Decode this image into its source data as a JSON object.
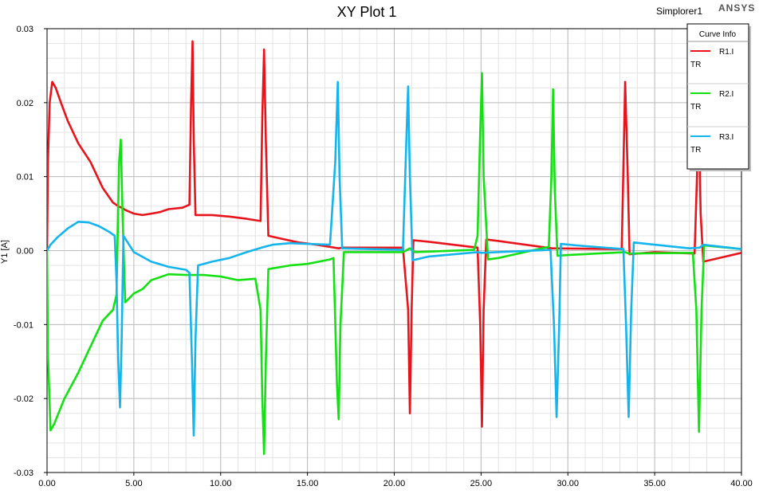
{
  "header": {
    "title": "XY Plot 1",
    "design_name": "Simplorer1",
    "logo": "ANSYS"
  },
  "legend": {
    "title": "Curve Info",
    "entries": [
      {
        "name": "R1.I",
        "sub": "TR",
        "color": "#e8141c"
      },
      {
        "name": "R2.I",
        "sub": "TR",
        "color": "#14e014"
      },
      {
        "name": "R3.I",
        "sub": "TR",
        "color": "#14b4ec"
      }
    ]
  },
  "chart_data": {
    "type": "line",
    "title": "XY Plot 1",
    "xlabel": "",
    "ylabel": "Y1 [A]",
    "xlim": [
      0,
      40
    ],
    "ylim": [
      -0.03,
      0.03
    ],
    "xticks": [
      "0.00",
      "5.00",
      "10.00",
      "15.00",
      "20.00",
      "25.00",
      "30.00",
      "35.00",
      "40.00"
    ],
    "yticks": [
      "0.03",
      "0.02",
      "0.01",
      "0.00",
      "-0.01",
      "-0.02",
      "-0.03"
    ],
    "grid": true,
    "legend_position": "top-right",
    "series": [
      {
        "name": "R1.I",
        "color": "#e8141c",
        "points": [
          [
            0,
            0
          ],
          [
            0.05,
            0.012
          ],
          [
            0.15,
            0.02
          ],
          [
            0.3,
            0.0228
          ],
          [
            0.5,
            0.022
          ],
          [
            0.8,
            0.02
          ],
          [
            1.2,
            0.0175
          ],
          [
            1.8,
            0.0145
          ],
          [
            2.5,
            0.012
          ],
          [
            3.2,
            0.0085
          ],
          [
            3.8,
            0.0065
          ],
          [
            4.1,
            0.006
          ],
          [
            4.3,
            0.0058
          ],
          [
            4.5,
            0.0055
          ],
          [
            5,
            0.005
          ],
          [
            5.5,
            0.0048
          ],
          [
            6,
            0.005
          ],
          [
            6.5,
            0.0052
          ],
          [
            7,
            0.0056
          ],
          [
            7.8,
            0.0058
          ],
          [
            8.2,
            0.0062
          ],
          [
            8.3,
            0.02
          ],
          [
            8.38,
            0.0283
          ],
          [
            8.45,
            0.015
          ],
          [
            8.55,
            0.0048
          ],
          [
            9.5,
            0.0048
          ],
          [
            10.5,
            0.0046
          ],
          [
            11.5,
            0.0043
          ],
          [
            12.3,
            0.004
          ],
          [
            12.4,
            0.018
          ],
          [
            12.5,
            0.0272
          ],
          [
            12.6,
            0.015
          ],
          [
            12.75,
            0.002
          ],
          [
            13.5,
            0.0016
          ],
          [
            14.5,
            0.0011
          ],
          [
            15.5,
            0.0008
          ],
          [
            16.3,
            0.0005
          ],
          [
            16.8,
            0.0003
          ],
          [
            17,
            0.0004
          ],
          [
            20.5,
            0.0004
          ],
          [
            20.8,
            -0.008
          ],
          [
            20.9,
            -0.022
          ],
          [
            21.0,
            -0.008
          ],
          [
            21.1,
            0.0014
          ],
          [
            22,
            0.0012
          ],
          [
            24.8,
            0.0004
          ],
          [
            24.95,
            -0.01
          ],
          [
            25.05,
            -0.0238
          ],
          [
            25.15,
            -0.008
          ],
          [
            25.3,
            0.0015
          ],
          [
            26,
            0.0013
          ],
          [
            28.5,
            0.0005
          ],
          [
            29.1,
            0.0003
          ],
          [
            29.2,
            0.0003
          ],
          [
            33.1,
            0.0002
          ],
          [
            33.3,
            0.0228
          ],
          [
            33.45,
            0.01
          ],
          [
            33.55,
            -0.0005
          ],
          [
            35,
            -0.0002
          ],
          [
            37.3,
            -0.0004
          ],
          [
            37.45,
            0.011
          ],
          [
            37.55,
            0.0165
          ],
          [
            37.65,
            0.005
          ],
          [
            37.8,
            -0.0015
          ],
          [
            40,
            -0.0003
          ]
        ]
      },
      {
        "name": "R2.I",
        "color": "#14e014",
        "points": [
          [
            0,
            0
          ],
          [
            0.05,
            -0.014
          ],
          [
            0.2,
            -0.0243
          ],
          [
            0.4,
            -0.0235
          ],
          [
            1,
            -0.02
          ],
          [
            1.8,
            -0.0165
          ],
          [
            2.5,
            -0.013
          ],
          [
            3.2,
            -0.0095
          ],
          [
            3.8,
            -0.008
          ],
          [
            4.0,
            -0.006
          ],
          [
            4.15,
            0.012
          ],
          [
            4.25,
            0.015
          ],
          [
            4.35,
            0.005
          ],
          [
            4.5,
            -0.007
          ],
          [
            5,
            -0.0058
          ],
          [
            5.5,
            -0.0052
          ],
          [
            6,
            -0.004
          ],
          [
            7,
            -0.0032
          ],
          [
            8,
            -0.0033
          ],
          [
            9,
            -0.0033
          ],
          [
            10,
            -0.0035
          ],
          [
            11,
            -0.004
          ],
          [
            12,
            -0.0038
          ],
          [
            12.3,
            -0.008
          ],
          [
            12.4,
            -0.02
          ],
          [
            12.5,
            -0.0275
          ],
          [
            12.6,
            -0.015
          ],
          [
            12.75,
            -0.0025
          ],
          [
            14,
            -0.002
          ],
          [
            15,
            -0.0018
          ],
          [
            16.3,
            -0.0012
          ],
          [
            16.5,
            -0.001
          ],
          [
            16.7,
            -0.018
          ],
          [
            16.8,
            -0.0228
          ],
          [
            16.9,
            -0.01
          ],
          [
            17.1,
            -0.0002
          ],
          [
            20.5,
            -0.0002
          ],
          [
            20.9,
            0.0003
          ],
          [
            21.2,
            -0.0002
          ],
          [
            24.6,
            0.0001
          ],
          [
            24.8,
            0.002
          ],
          [
            24.95,
            0.016
          ],
          [
            25.05,
            0.024
          ],
          [
            25.15,
            0.01
          ],
          [
            25.4,
            -0.0012
          ],
          [
            26,
            -0.001
          ],
          [
            28.5,
            0.0003
          ],
          [
            28.9,
            0.0005
          ],
          [
            29.05,
            0.01
          ],
          [
            29.15,
            0.0218
          ],
          [
            29.25,
            0.008
          ],
          [
            29.4,
            -0.0007
          ],
          [
            30,
            -0.0006
          ],
          [
            33.3,
            -0.0002
          ],
          [
            33.5,
            -0.0004
          ],
          [
            37.2,
            -0.0003
          ],
          [
            37.4,
            -0.008
          ],
          [
            37.55,
            -0.0245
          ],
          [
            37.7,
            -0.008
          ],
          [
            37.85,
            0.0007
          ],
          [
            40,
            0.0002
          ]
        ]
      },
      {
        "name": "R3.I",
        "color": "#14b4ec",
        "points": [
          [
            0,
            0
          ],
          [
            0.2,
            0.0008
          ],
          [
            0.6,
            0.0018
          ],
          [
            1.2,
            0.003
          ],
          [
            1.8,
            0.0039
          ],
          [
            2.4,
            0.0038
          ],
          [
            3,
            0.0033
          ],
          [
            3.6,
            0.0025
          ],
          [
            3.9,
            0.002
          ],
          [
            4.0,
            -0.004
          ],
          [
            4.1,
            -0.015
          ],
          [
            4.2,
            -0.0212
          ],
          [
            4.3,
            -0.012
          ],
          [
            4.4,
            0.002
          ],
          [
            5,
            -0.0002
          ],
          [
            6,
            -0.0015
          ],
          [
            7,
            -0.0022
          ],
          [
            8,
            -0.0026
          ],
          [
            8.2,
            -0.003
          ],
          [
            8.35,
            -0.015
          ],
          [
            8.45,
            -0.025
          ],
          [
            8.55,
            -0.012
          ],
          [
            8.7,
            -0.002
          ],
          [
            9.5,
            -0.0015
          ],
          [
            10.5,
            -0.001
          ],
          [
            11.5,
            -0.0002
          ],
          [
            12.5,
            0.0005
          ],
          [
            13,
            0.0008
          ],
          [
            14,
            0.001
          ],
          [
            15,
            0.0009
          ],
          [
            16.3,
            0.0008
          ],
          [
            16.6,
            0.012
          ],
          [
            16.75,
            0.0228
          ],
          [
            16.85,
            0.01
          ],
          [
            17,
            0.0003
          ],
          [
            20.5,
            0.0001
          ],
          [
            20.7,
            0.015
          ],
          [
            20.8,
            0.0222
          ],
          [
            20.9,
            0.01
          ],
          [
            21.05,
            -0.0013
          ],
          [
            22,
            -0.0008
          ],
          [
            24.8,
            -0.0002
          ],
          [
            25,
            -0.0003
          ],
          [
            29,
            0.0001
          ],
          [
            29.2,
            -0.01
          ],
          [
            29.35,
            -0.0225
          ],
          [
            29.5,
            -0.01
          ],
          [
            29.6,
            0.0009
          ],
          [
            30.5,
            0.0007
          ],
          [
            33.2,
            0.0002
          ],
          [
            33.35,
            -0.01
          ],
          [
            33.5,
            -0.0225
          ],
          [
            33.65,
            -0.008
          ],
          [
            33.8,
            0.0011
          ],
          [
            37,
            0.0003
          ],
          [
            37.6,
            0.0004
          ],
          [
            37.8,
            0.0008
          ],
          [
            40,
            0.0002
          ]
        ]
      }
    ]
  }
}
